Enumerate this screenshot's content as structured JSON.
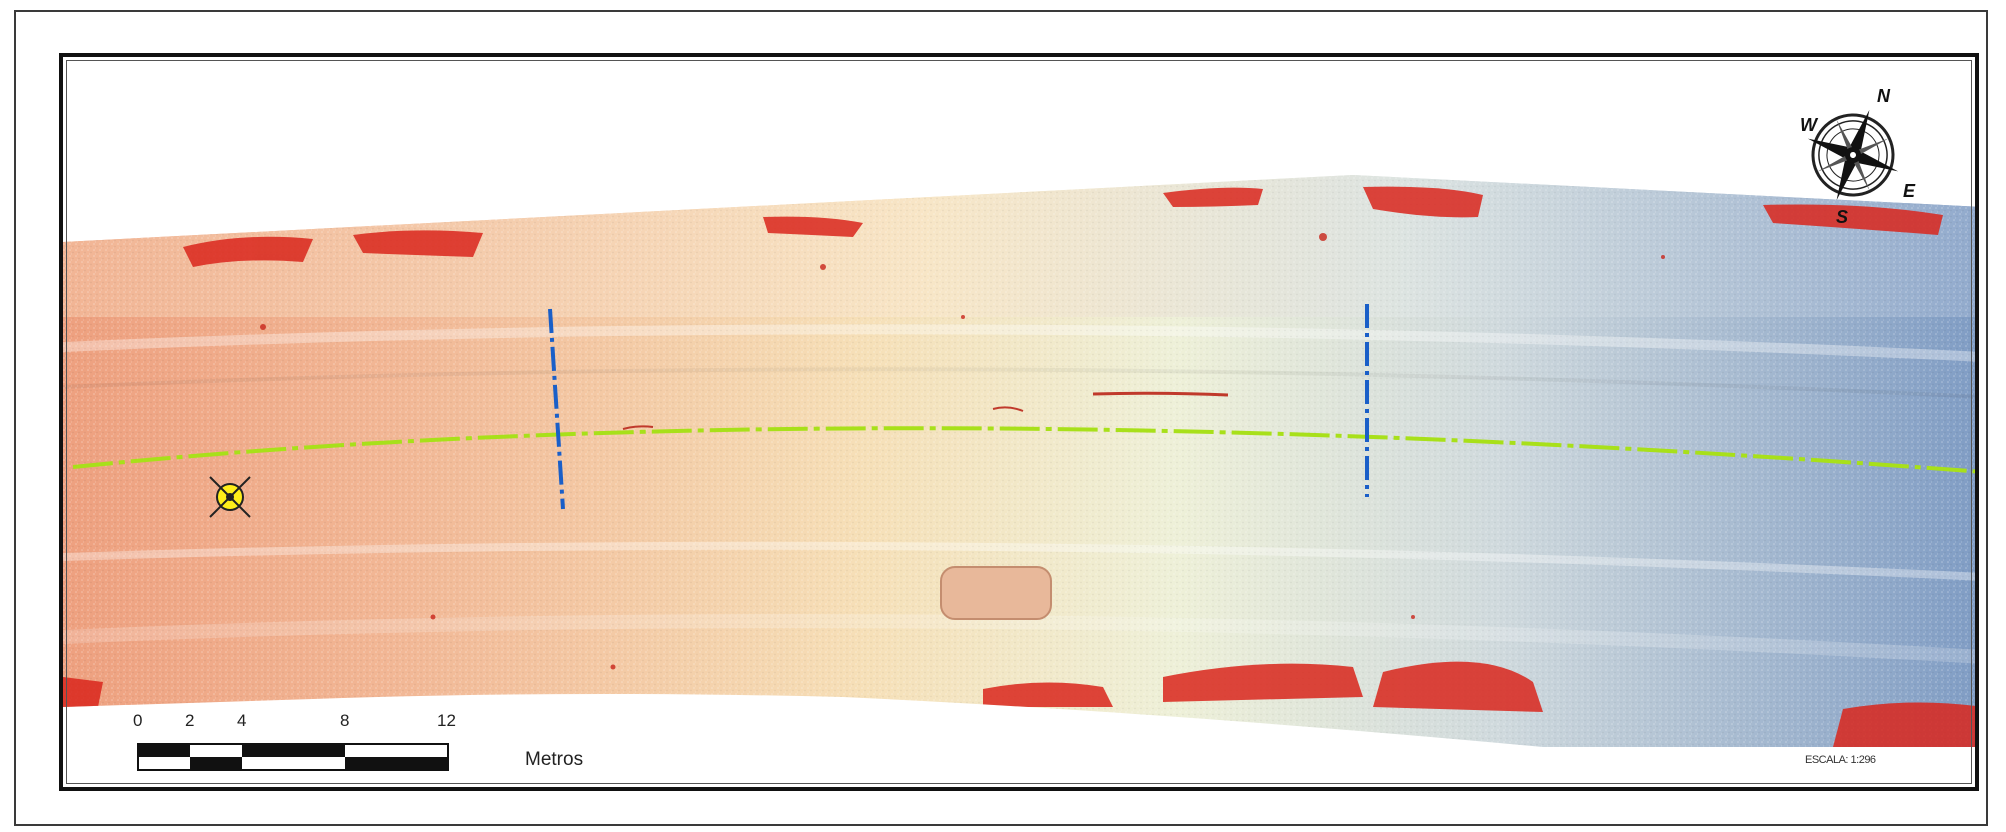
{
  "map": {
    "compass": {
      "north": "N",
      "south": "S",
      "east": "E",
      "west": "W"
    },
    "scale_bar": {
      "ticks": [
        "0",
        "2",
        "4",
        "8",
        "12"
      ],
      "unit": "Metros"
    },
    "scale_text": "ESCALA:  1:296",
    "features": {
      "centerline_color": "#a8e01a",
      "section_line_color": "#1a5fc8",
      "control_point_icon": "crosshair-target-icon",
      "compass_icon": "compass-rose-icon"
    },
    "colors": {
      "high": "#d9261c",
      "mid": "#f5f0c4",
      "low": "#5f86b8"
    }
  }
}
